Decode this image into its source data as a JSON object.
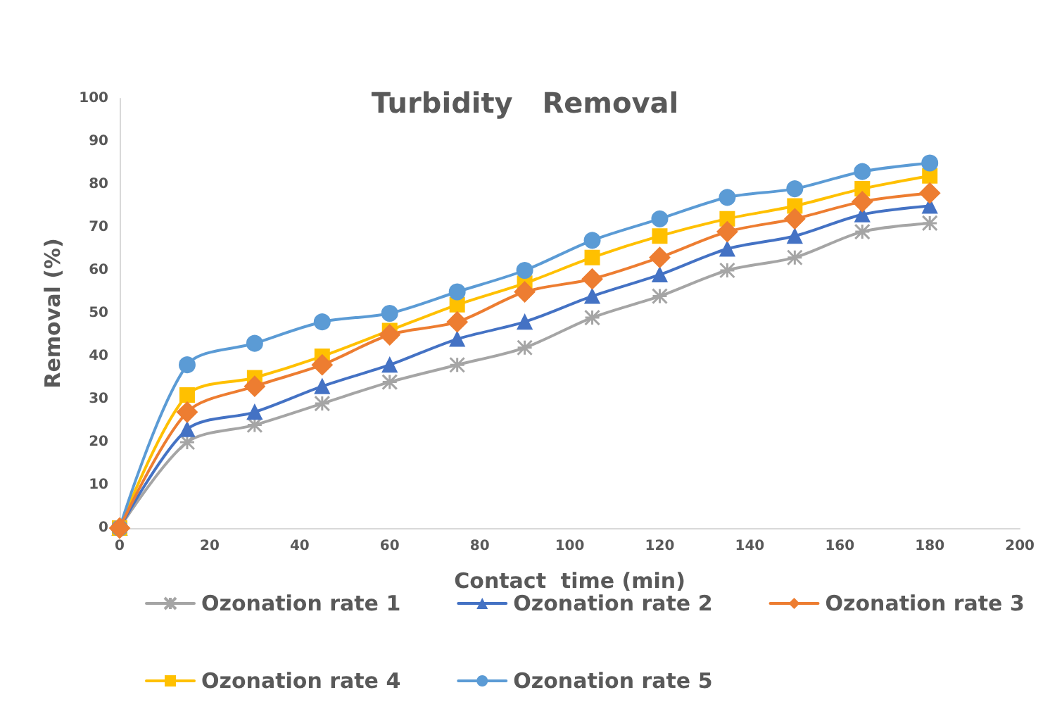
{
  "chart_data": {
    "type": "line",
    "title": "Turbidity   Removal",
    "xlabel": "Contact  time (min)",
    "ylabel": "Removal (%)",
    "x": [
      0,
      15,
      30,
      45,
      60,
      75,
      90,
      105,
      120,
      135,
      150,
      165,
      180
    ],
    "series": [
      {
        "name": "Ozonation rate 1",
        "color": "#a5a5a5",
        "marker": "cross",
        "values": [
          0,
          20,
          24,
          29,
          34,
          38,
          42,
          49,
          54,
          60,
          63,
          69,
          71
        ]
      },
      {
        "name": "Ozonation rate 2",
        "color": "#4472c4",
        "marker": "triangle",
        "values": [
          0,
          23,
          27,
          33,
          38,
          44,
          48,
          54,
          59,
          65,
          68,
          73,
          75
        ]
      },
      {
        "name": "Ozonation rate 3",
        "color": "#ed7d31",
        "marker": "diamond",
        "values": [
          0,
          27,
          33,
          38,
          45,
          48,
          55,
          58,
          63,
          69,
          72,
          76,
          78
        ]
      },
      {
        "name": "Ozonation rate 4",
        "color": "#ffc000",
        "marker": "square",
        "values": [
          0,
          31,
          35,
          40,
          46,
          52,
          57,
          63,
          68,
          72,
          75,
          79,
          82
        ]
      },
      {
        "name": "Ozonation rate 5",
        "color": "#5b9bd5",
        "marker": "circle",
        "values": [
          0,
          38,
          43,
          48,
          50,
          55,
          60,
          67,
          72,
          77,
          79,
          83,
          85
        ]
      }
    ],
    "xlim": [
      0,
      200
    ],
    "xticks": [
      0,
      20,
      40,
      60,
      80,
      100,
      120,
      140,
      160,
      180,
      200
    ],
    "ylim": [
      0,
      100
    ],
    "yticks": [
      0,
      10,
      20,
      30,
      40,
      50,
      60,
      70,
      80,
      90,
      100
    ],
    "grid": false,
    "legend": "bottom",
    "line_style": "solid"
  }
}
